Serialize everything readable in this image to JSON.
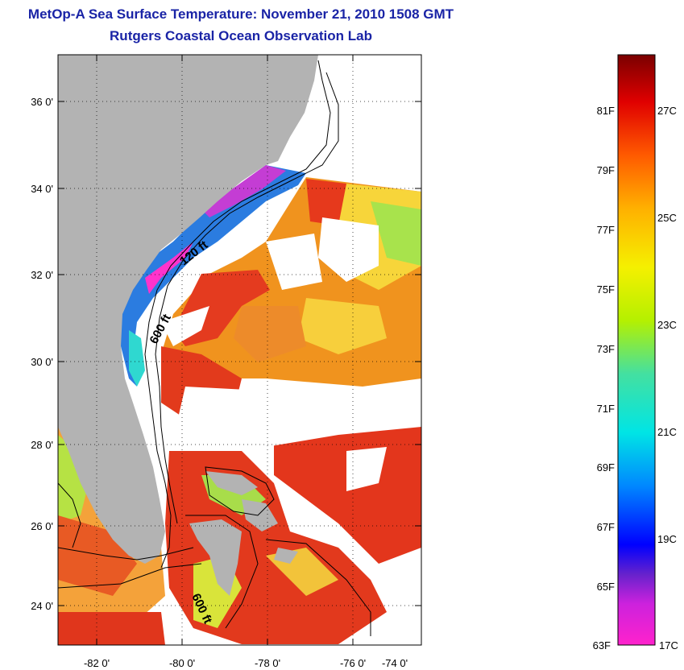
{
  "header": {
    "title": "MetOp-A Sea Surface Temperature:  November 21, 2010 1508 GMT",
    "subtitle": "Rutgers Coastal Ocean Observation Lab"
  },
  "map": {
    "lat_labels": [
      "36 0'",
      "34 0'",
      "32 0'",
      "30 0'",
      "28 0'",
      "26 0'",
      "24 0'"
    ],
    "lon_labels": [
      "-82 0'",
      "-80 0'",
      "-78 0'",
      "-76 0'",
      "-74 0'"
    ],
    "contour_labels": [
      "120 ft",
      "600 ft",
      "600 ft"
    ],
    "colors": {
      "land": "#b3b3b3",
      "cloud_mask": "#ffffff",
      "warm_sst": "#e8321e",
      "mid_sst": "#f08a1c",
      "cool_sst": "#9ee04a"
    }
  },
  "colorbar": {
    "fahrenheit_labels": [
      "81F",
      "79F",
      "77F",
      "75F",
      "73F",
      "71F",
      "69F",
      "67F",
      "65F",
      "63F"
    ],
    "celsius_labels": [
      "27C",
      "25C",
      "23C",
      "21C",
      "19C",
      "17C"
    ],
    "colors": [
      "#ff22cc",
      "#9933cc",
      "#0000ff",
      "#0088ff",
      "#00e5e5",
      "#44e0a0",
      "#b5f000",
      "#f5f000",
      "#ffb000",
      "#ff5a00",
      "#e00000",
      "#7a0000"
    ]
  }
}
